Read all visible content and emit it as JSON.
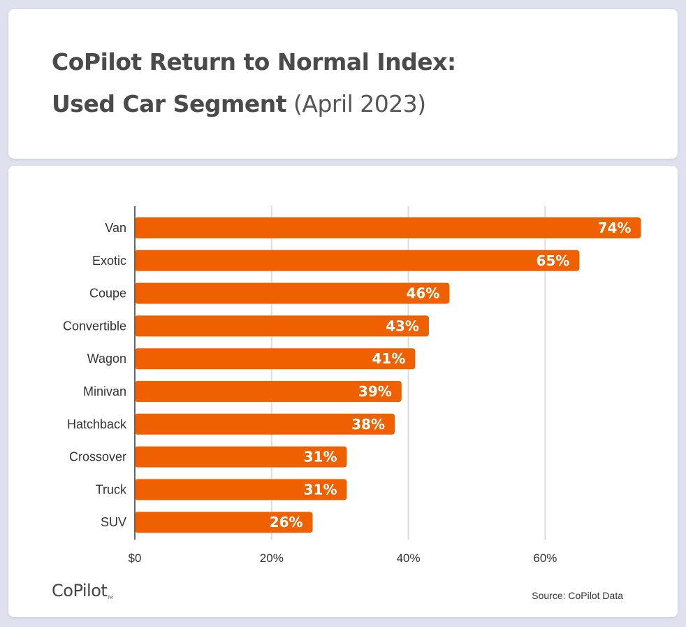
{
  "title": {
    "line1": "CoPilot Return to Normal Index:",
    "line2_bold": "Used Car Segment",
    "line2_light": " (April 2023)"
  },
  "chart_data": {
    "type": "bar",
    "orientation": "horizontal",
    "categories": [
      "Van",
      "Exotic",
      "Coupe",
      "Convertible",
      "Wagon",
      "Minivan",
      "Hatchback",
      "Crossover",
      "Truck",
      "SUV"
    ],
    "values": [
      74,
      65,
      46,
      43,
      41,
      39,
      38,
      31,
      31,
      26
    ],
    "value_labels": [
      "74%",
      "65%",
      "46%",
      "43%",
      "41%",
      "39%",
      "38%",
      "31%",
      "31%",
      "26%"
    ],
    "xticks": [
      0,
      20,
      40,
      60
    ],
    "xtick_labels": [
      "$0",
      "20%",
      "40%",
      "60%"
    ],
    "xlim": [
      0,
      80
    ],
    "grid": true,
    "bar_color": "#ef6100"
  },
  "footer": {
    "logo": "CoPilot",
    "logo_tm": "TM",
    "source": "Source: CoPilot Data"
  }
}
